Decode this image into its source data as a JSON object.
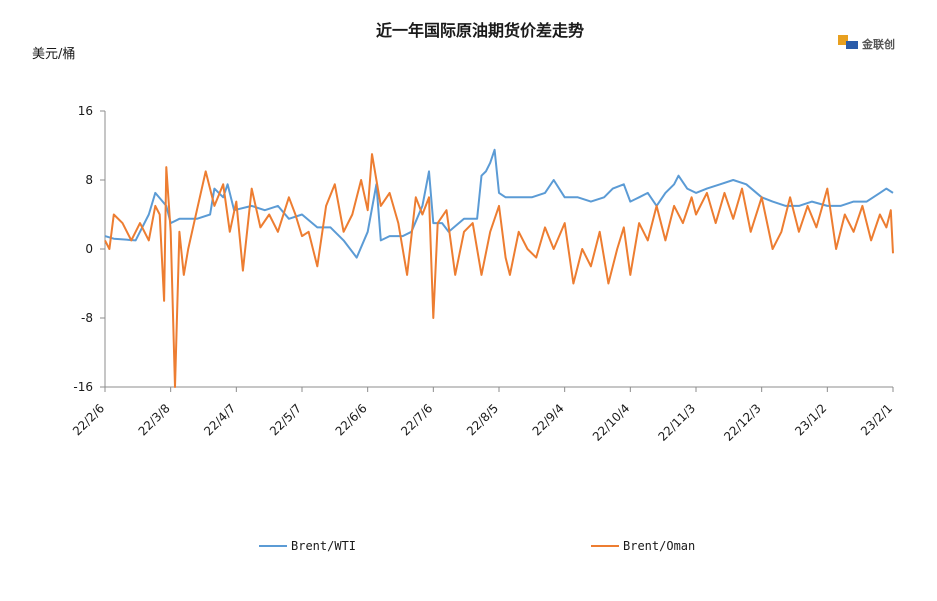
{
  "chart_data": {
    "type": "line",
    "title": "近一年国际原油期货价差走势",
    "ylabel": "美元/桶",
    "ylim": [
      -16,
      16
    ],
    "yticks": [
      16,
      8,
      0,
      -8,
      -16
    ],
    "xticks": [
      "22/2/6",
      "22/3/8",
      "22/4/7",
      "22/5/7",
      "22/6/6",
      "22/7/6",
      "22/8/5",
      "22/9/4",
      "22/10/4",
      "22/11/3",
      "22/12/3",
      "23/1/2",
      "23/2/1"
    ],
    "legend_position": "bottom",
    "grid": false,
    "brand": "金联创",
    "series": [
      {
        "name": "Brent/WTI",
        "color": "#5b9bd5",
        "keypoints": [
          [
            "22/2/6",
            1.5
          ],
          [
            "22/2/10",
            1.2
          ],
          [
            "22/2/20",
            1.0
          ],
          [
            "22/2/26",
            4.0
          ],
          [
            "22/3/1",
            6.5
          ],
          [
            "22/3/6",
            5.0
          ],
          [
            "22/3/8",
            3.0
          ],
          [
            "22/3/12",
            3.5
          ],
          [
            "22/3/20",
            3.5
          ],
          [
            "22/3/26",
            4.0
          ],
          [
            "22/3/28",
            7.0
          ],
          [
            "22/4/1",
            6.0
          ],
          [
            "22/4/3",
            7.5
          ],
          [
            "22/4/6",
            4.5
          ],
          [
            "22/4/14",
            5.0
          ],
          [
            "22/4/20",
            4.5
          ],
          [
            "22/4/26",
            5.0
          ],
          [
            "22/5/1",
            3.5
          ],
          [
            "22/5/7",
            4.0
          ],
          [
            "22/5/14",
            2.5
          ],
          [
            "22/5/20",
            2.5
          ],
          [
            "22/5/26",
            1.0
          ],
          [
            "22/6/1",
            -1.0
          ],
          [
            "22/6/6",
            2.0
          ],
          [
            "22/6/10",
            7.5
          ],
          [
            "22/6/12",
            1.0
          ],
          [
            "22/6/16",
            1.5
          ],
          [
            "22/6/22",
            1.5
          ],
          [
            "22/6/26",
            2.0
          ],
          [
            "22/7/1",
            5.0
          ],
          [
            "22/7/4",
            9.0
          ],
          [
            "22/7/6",
            3.0
          ],
          [
            "22/7/10",
            3.0
          ],
          [
            "22/7/13",
            2.0
          ],
          [
            "22/7/20",
            3.5
          ],
          [
            "22/7/26",
            3.5
          ],
          [
            "22/7/28",
            8.5
          ],
          [
            "22/7/30",
            9.0
          ],
          [
            "22/8/1",
            10.0
          ],
          [
            "22/8/3",
            11.5
          ],
          [
            "22/8/5",
            6.5
          ],
          [
            "22/8/8",
            6.0
          ],
          [
            "22/8/14",
            6.0
          ],
          [
            "22/8/20",
            6.0
          ],
          [
            "22/8/26",
            6.5
          ],
          [
            "22/8/30",
            8.0
          ],
          [
            "22/9/4",
            6.0
          ],
          [
            "22/9/10",
            6.0
          ],
          [
            "22/9/16",
            5.5
          ],
          [
            "22/9/22",
            6.0
          ],
          [
            "22/9/26",
            7.0
          ],
          [
            "22/10/1",
            7.5
          ],
          [
            "22/10/4",
            5.5
          ],
          [
            "22/10/8",
            6.0
          ],
          [
            "22/10/12",
            6.5
          ],
          [
            "22/10/16",
            5.0
          ],
          [
            "22/10/20",
            6.5
          ],
          [
            "22/10/24",
            7.5
          ],
          [
            "22/10/26",
            8.5
          ],
          [
            "22/10/30",
            7.0
          ],
          [
            "22/11/3",
            6.5
          ],
          [
            "22/11/8",
            7.0
          ],
          [
            "22/11/14",
            7.5
          ],
          [
            "22/11/20",
            8.0
          ],
          [
            "22/11/26",
            7.5
          ],
          [
            "22/12/3",
            6.0
          ],
          [
            "22/12/8",
            5.5
          ],
          [
            "22/12/14",
            5.0
          ],
          [
            "22/12/20",
            5.0
          ],
          [
            "22/12/26",
            5.5
          ],
          [
            "23/1/2",
            5.0
          ],
          [
            "23/1/8",
            5.0
          ],
          [
            "23/1/14",
            5.5
          ],
          [
            "23/1/20",
            5.5
          ],
          [
            "23/1/26",
            6.5
          ],
          [
            "23/1/29",
            7.0
          ],
          [
            "23/2/1",
            6.5
          ]
        ]
      },
      {
        "name": "Brent/Oman",
        "color": "#ed7d31",
        "keypoints": [
          [
            "22/2/6",
            1.0
          ],
          [
            "22/2/8",
            0.0
          ],
          [
            "22/2/10",
            4.0
          ],
          [
            "22/2/14",
            3.0
          ],
          [
            "22/2/18",
            1.0
          ],
          [
            "22/2/22",
            3.0
          ],
          [
            "22/2/26",
            1.0
          ],
          [
            "22/3/1",
            5.0
          ],
          [
            "22/3/3",
            4.0
          ],
          [
            "22/3/5",
            -6.0
          ],
          [
            "22/3/6",
            9.5
          ],
          [
            "22/3/8",
            2.0
          ],
          [
            "22/3/10",
            -16.0
          ],
          [
            "22/3/12",
            2.0
          ],
          [
            "22/3/14",
            -3.0
          ],
          [
            "22/3/16",
            0.0
          ],
          [
            "22/3/20",
            4.5
          ],
          [
            "22/3/24",
            9.0
          ],
          [
            "22/3/28",
            5.0
          ],
          [
            "22/4/1",
            7.5
          ],
          [
            "22/4/4",
            2.0
          ],
          [
            "22/4/7",
            5.5
          ],
          [
            "22/4/10",
            -2.5
          ],
          [
            "22/4/14",
            7.0
          ],
          [
            "22/4/18",
            2.5
          ],
          [
            "22/4/22",
            4.0
          ],
          [
            "22/4/26",
            2.0
          ],
          [
            "22/5/1",
            6.0
          ],
          [
            "22/5/4",
            4.0
          ],
          [
            "22/5/7",
            1.5
          ],
          [
            "22/5/10",
            2.0
          ],
          [
            "22/5/14",
            -2.0
          ],
          [
            "22/5/18",
            5.0
          ],
          [
            "22/5/22",
            7.5
          ],
          [
            "22/5/26",
            2.0
          ],
          [
            "22/5/30",
            4.0
          ],
          [
            "22/6/3",
            8.0
          ],
          [
            "22/6/6",
            4.5
          ],
          [
            "22/6/8",
            11.0
          ],
          [
            "22/6/12",
            5.0
          ],
          [
            "22/6/16",
            6.5
          ],
          [
            "22/6/20",
            3.0
          ],
          [
            "22/6/24",
            -3.0
          ],
          [
            "22/6/28",
            6.0
          ],
          [
            "22/7/1",
            4.0
          ],
          [
            "22/7/4",
            6.0
          ],
          [
            "22/7/6",
            -8.0
          ],
          [
            "22/7/8",
            3.0
          ],
          [
            "22/7/12",
            4.5
          ],
          [
            "22/7/16",
            -3.0
          ],
          [
            "22/7/20",
            2.0
          ],
          [
            "22/7/24",
            3.0
          ],
          [
            "22/7/28",
            -3.0
          ],
          [
            "22/8/1",
            2.0
          ],
          [
            "22/8/5",
            5.0
          ],
          [
            "22/8/8",
            -1.0
          ],
          [
            "22/8/10",
            -3.0
          ],
          [
            "22/8/14",
            2.0
          ],
          [
            "22/8/18",
            0.0
          ],
          [
            "22/8/22",
            -1.0
          ],
          [
            "22/8/26",
            2.5
          ],
          [
            "22/8/30",
            0.0
          ],
          [
            "22/9/4",
            3.0
          ],
          [
            "22/9/8",
            -4.0
          ],
          [
            "22/9/12",
            0.0
          ],
          [
            "22/9/16",
            -2.0
          ],
          [
            "22/9/20",
            2.0
          ],
          [
            "22/9/24",
            -4.0
          ],
          [
            "22/9/28",
            0.0
          ],
          [
            "22/10/1",
            2.5
          ],
          [
            "22/10/4",
            -3.0
          ],
          [
            "22/10/8",
            3.0
          ],
          [
            "22/10/12",
            1.0
          ],
          [
            "22/10/16",
            5.0
          ],
          [
            "22/10/20",
            1.0
          ],
          [
            "22/10/24",
            5.0
          ],
          [
            "22/10/28",
            3.0
          ],
          [
            "22/11/1",
            6.0
          ],
          [
            "22/11/3",
            4.0
          ],
          [
            "22/11/8",
            6.5
          ],
          [
            "22/11/12",
            3.0
          ],
          [
            "22/11/16",
            6.5
          ],
          [
            "22/11/20",
            3.5
          ],
          [
            "22/11/24",
            7.0
          ],
          [
            "22/11/28",
            2.0
          ],
          [
            "22/12/3",
            6.0
          ],
          [
            "22/12/8",
            0.0
          ],
          [
            "22/12/12",
            2.0
          ],
          [
            "22/12/16",
            6.0
          ],
          [
            "22/12/20",
            2.0
          ],
          [
            "22/12/24",
            5.0
          ],
          [
            "22/12/28",
            2.5
          ],
          [
            "23/1/2",
            7.0
          ],
          [
            "23/1/6",
            0.0
          ],
          [
            "23/1/10",
            4.0
          ],
          [
            "23/1/14",
            2.0
          ],
          [
            "23/1/18",
            5.0
          ],
          [
            "23/1/22",
            1.0
          ],
          [
            "23/1/26",
            4.0
          ],
          [
            "23/1/29",
            2.5
          ],
          [
            "23/1/31",
            4.5
          ],
          [
            "23/2/1",
            -0.5
          ]
        ]
      }
    ]
  }
}
